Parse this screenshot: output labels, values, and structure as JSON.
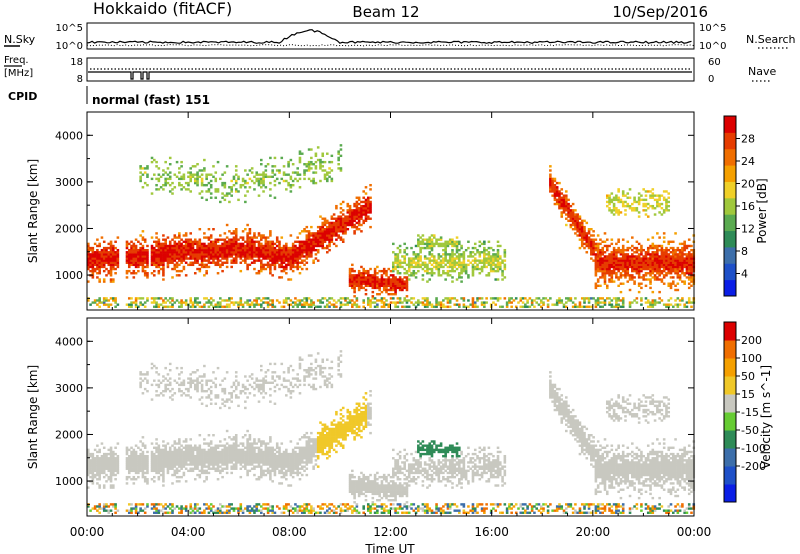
{
  "header": {
    "station": "Hokkaido (fitACF)",
    "beam": "Beam 12",
    "date": "10/Sep/2016"
  },
  "top_panels": {
    "nsky": {
      "label": "N.Sky",
      "ticks": [
        "10^5",
        "10^0"
      ]
    },
    "nsearch": {
      "label": "N.Search",
      "ticks": [
        "10^5",
        "10^0"
      ]
    },
    "freq": {
      "label_line1": "Freq.",
      "label_line2": "[MHz]",
      "ticks": [
        "18",
        "8"
      ]
    },
    "nave": {
      "label": "Nave",
      "ticks": [
        "60",
        "0"
      ]
    },
    "cpid": {
      "label": "CPID",
      "value": "normal (fast) 151"
    }
  },
  "chart_data": [
    {
      "type": "heatmap",
      "ylabel": "Slant Range [km]",
      "ylim": [
        250,
        4500
      ],
      "yticks": [
        "1000",
        "2000",
        "3000",
        "4000"
      ],
      "colorbar": {
        "label": "Power [dB]",
        "ticks": [
          "28",
          "24",
          "20",
          "16",
          "12",
          "8",
          "4"
        ],
        "range": [
          0,
          32
        ],
        "colors": [
          "#0a1ee6",
          "#1e50c8",
          "#3c6eaa",
          "#2e8b57",
          "#5aaa50",
          "#a0c83c",
          "#f0d028",
          "#f5a000",
          "#f06e00",
          "#e63c00",
          "#dc0000"
        ]
      }
    },
    {
      "type": "heatmap",
      "ylabel": "Slant Range [km]",
      "ylim": [
        250,
        4500
      ],
      "yticks": [
        "1000",
        "2000",
        "3000",
        "4000"
      ],
      "colorbar": {
        "label": "Velocity [m s^-1]",
        "ticks": [
          "200",
          "100",
          "50",
          "15",
          "-15",
          "-50",
          "-100",
          "-200"
        ],
        "range": [
          -250,
          250
        ],
        "colors": [
          "#0a1ee6",
          "#1e50c8",
          "#3c6eaa",
          "#2e8b57",
          "#66cc33",
          "#c8c8c0",
          "#f0c828",
          "#f5a000",
          "#f06e00",
          "#dc0000"
        ]
      }
    }
  ],
  "xaxis": {
    "label": "Time UT",
    "ticks": [
      "00:00",
      "04:00",
      "08:00",
      "12:00",
      "16:00",
      "20:00",
      "00:00"
    ],
    "range_hours": [
      0,
      24
    ]
  }
}
